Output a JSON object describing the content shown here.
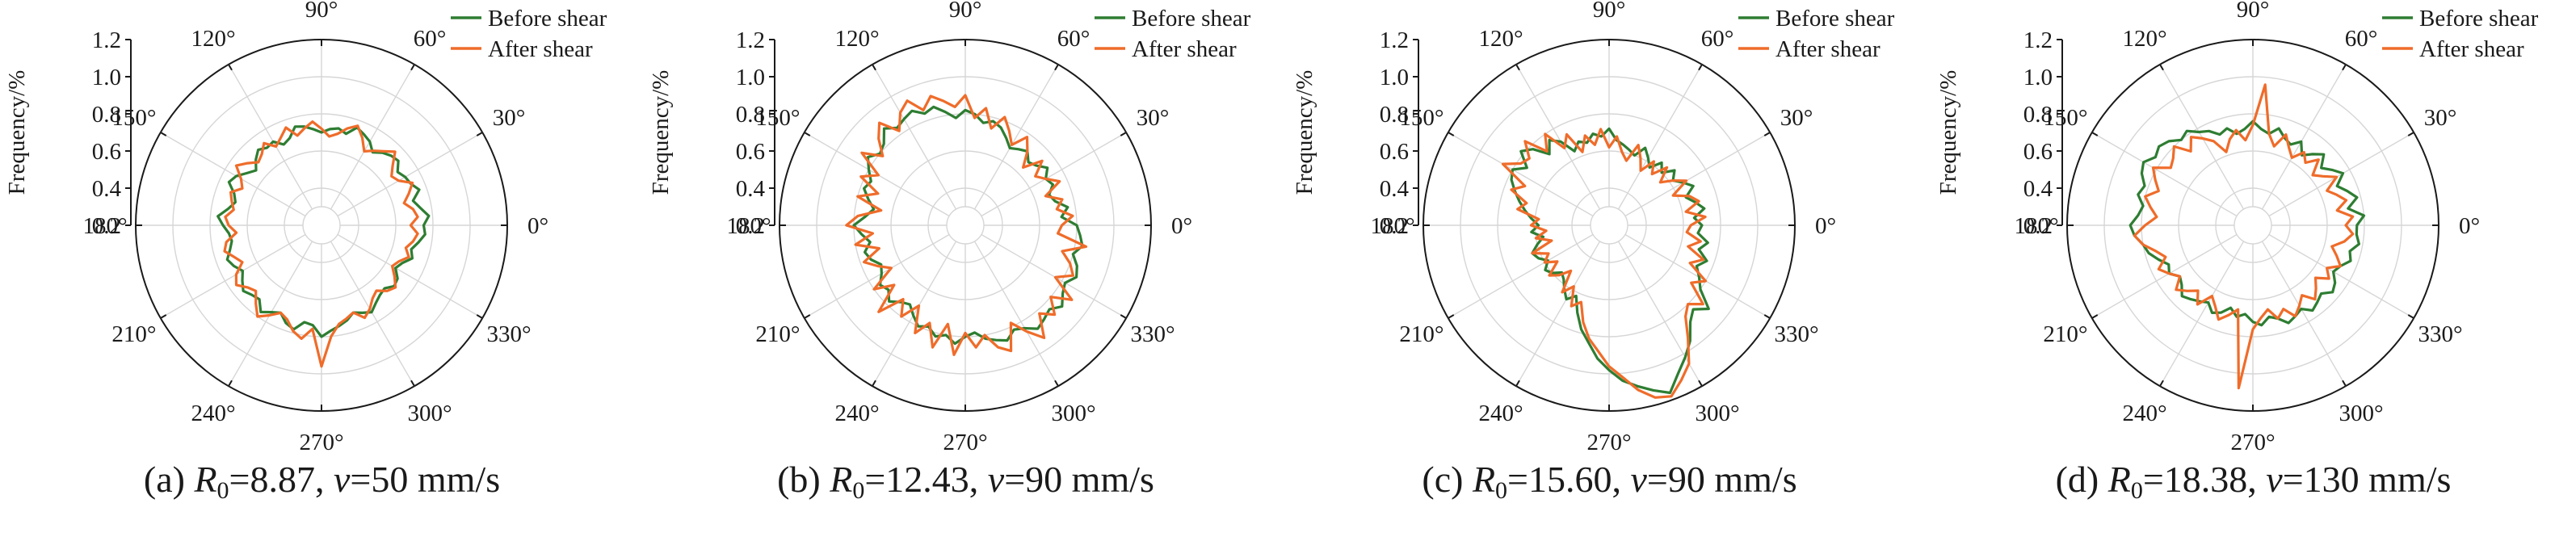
{
  "colors": {
    "before": "#2e7d32",
    "after": "#ef6c2a",
    "grid": "#d6d6d6",
    "axis": "#1a1a1a"
  },
  "panels": [
    {
      "label_prefix": "(a) ",
      "r_symbol": "R",
      "r_sub": "0",
      "r_value": "=8.87, ",
      "v_symbol": "v",
      "v_value": "=50 mm/s",
      "chart_data": {
        "type": "line",
        "projection": "polar",
        "rlabel": "Frequency/%",
        "rlim": [
          0,
          1.2
        ],
        "rticks": [
          "0.2",
          "0.4",
          "0.6",
          "0.8",
          "1.0",
          "1.2"
        ],
        "theta_ticks": [
          "0°",
          "30°",
          "60°",
          "90°",
          "120°",
          "150°",
          "180°",
          "210°",
          "240°",
          "270°",
          "300°",
          "330°"
        ],
        "legend": "top-right",
        "series": [
          {
            "name": "Before shear",
            "angle_step_deg": 5,
            "values": [
              0.75,
              0.78,
              0.74,
              0.71,
              0.76,
              0.73,
              0.72,
              0.7,
              0.74,
              0.73,
              0.71,
              0.68,
              0.72,
              0.74,
              0.76,
              0.71,
              0.73,
              0.72,
              0.7,
              0.72,
              0.74,
              0.75,
              0.7,
              0.68,
              0.72,
              0.71,
              0.73,
              0.7,
              0.66,
              0.69,
              0.73,
              0.75,
              0.7,
              0.68,
              0.71,
              0.76,
              0.73,
              0.7,
              0.69,
              0.71,
              0.74,
              0.72,
              0.69,
              0.72,
              0.75,
              0.73,
              0.72,
              0.77,
              0.74,
              0.72,
              0.76,
              0.78,
              0.73,
              0.74,
              0.8,
              0.77,
              0.75,
              0.73,
              0.7,
              0.72,
              0.74,
              0.71,
              0.69,
              0.68,
              0.71,
              0.7,
              0.66,
              0.68,
              0.72,
              0.7,
              0.73,
              0.76
            ]
          },
          {
            "name": "After shear",
            "angle_step_deg": 5,
            "values": [
              0.68,
              0.72,
              0.7,
              0.66,
              0.7,
              0.74,
              0.68,
              0.66,
              0.7,
              0.76,
              0.72,
              0.69,
              0.66,
              0.72,
              0.77,
              0.74,
              0.7,
              0.68,
              0.72,
              0.76,
              0.73,
              0.7,
              0.76,
              0.72,
              0.69,
              0.74,
              0.7,
              0.68,
              0.72,
              0.76,
              0.7,
              0.67,
              0.72,
              0.7,
              0.68,
              0.72,
              0.7,
              0.66,
              0.72,
              0.74,
              0.7,
              0.67,
              0.73,
              0.76,
              0.72,
              0.7,
              0.75,
              0.8,
              0.76,
              0.72,
              0.74,
              0.79,
              0.82,
              0.76,
              0.96,
              0.8,
              0.74,
              0.72,
              0.7,
              0.75,
              0.72,
              0.68,
              0.66,
              0.7,
              0.72,
              0.68,
              0.64,
              0.66,
              0.7,
              0.67,
              0.7,
              0.72
            ]
          }
        ]
      }
    },
    {
      "label_prefix": "(b) ",
      "r_symbol": "R",
      "r_sub": "0",
      "r_value": "=12.43, ",
      "v_symbol": "v",
      "v_value": "=90 mm/s",
      "chart_data": {
        "type": "line",
        "projection": "polar",
        "rlabel": "Frequency/%",
        "rlim": [
          0,
          1.2
        ],
        "rticks": [
          "0.2",
          "0.4",
          "0.6",
          "0.8",
          "1.0",
          "1.2"
        ],
        "theta_ticks": [
          "0°",
          "30°",
          "60°",
          "90°",
          "120°",
          "150°",
          "180°",
          "210°",
          "240°",
          "270°",
          "300°",
          "330°"
        ],
        "legend": "top-right",
        "series": [
          {
            "name": "Before shear",
            "angle_step_deg": 5,
            "values": [
              0.8,
              0.72,
              0.76,
              0.7,
              0.68,
              0.72,
              0.7,
              0.74,
              0.7,
              0.68,
              0.72,
              0.7,
              0.68,
              0.72,
              0.76,
              0.78,
              0.76,
              0.8,
              0.82,
              0.78,
              0.82,
              0.86,
              0.84,
              0.88,
              0.86,
              0.84,
              0.88,
              0.82,
              0.8,
              0.84,
              0.8,
              0.76,
              0.78,
              0.74,
              0.7,
              0.74,
              0.8,
              0.76,
              0.72,
              0.76,
              0.74,
              0.7,
              0.72,
              0.76,
              0.74,
              0.78,
              0.74,
              0.72,
              0.76,
              0.8,
              0.78,
              0.82,
              0.8,
              0.84,
              0.8,
              0.78,
              0.82,
              0.84,
              0.86,
              0.82,
              0.84,
              0.88,
              0.86,
              0.84,
              0.88,
              0.84,
              0.82,
              0.86,
              0.84,
              0.8,
              0.84,
              0.82
            ]
          },
          {
            "name": "After shear",
            "angle_step_deg": 5,
            "values": [
              0.72,
              0.78,
              0.7,
              0.74,
              0.66,
              0.76,
              0.7,
              0.66,
              0.74,
              0.64,
              0.72,
              0.78,
              0.7,
              0.76,
              0.82,
              0.74,
              0.84,
              0.78,
              0.9,
              0.84,
              0.88,
              0.92,
              0.86,
              0.94,
              0.9,
              0.82,
              0.92,
              0.86,
              0.78,
              0.88,
              0.74,
              0.82,
              0.7,
              0.8,
              0.66,
              0.78,
              0.84,
              0.7,
              0.8,
              0.68,
              0.78,
              0.72,
              0.66,
              0.8,
              0.7,
              0.86,
              0.72,
              0.8,
              0.7,
              0.84,
              0.76,
              0.88,
              0.74,
              0.9,
              0.78,
              0.86,
              0.8,
              0.88,
              0.92,
              0.78,
              0.86,
              0.94,
              0.82,
              0.88,
              0.8,
              0.9,
              0.76,
              0.84,
              0.8,
              0.74,
              0.86,
              0.7
            ]
          }
        ]
      }
    },
    {
      "label_prefix": "(c) ",
      "r_symbol": "R",
      "r_sub": "0",
      "r_value": "=15.60, ",
      "v_symbol": "v",
      "v_value": "=90 mm/s",
      "chart_data": {
        "type": "line",
        "projection": "polar",
        "rlabel": "Frequency/%",
        "rlim": [
          0,
          1.2
        ],
        "rticks": [
          "0.2",
          "0.4",
          "0.6",
          "0.8",
          "1.0",
          "1.2"
        ],
        "theta_ticks": [
          "0°",
          "30°",
          "60°",
          "90°",
          "120°",
          "150°",
          "180°",
          "210°",
          "240°",
          "270°",
          "300°",
          "330°"
        ],
        "legend": "top-right",
        "series": [
          {
            "name": "Before shear",
            "angle_step_deg": 5,
            "values": [
              0.7,
              0.66,
              0.72,
              0.68,
              0.64,
              0.7,
              0.66,
              0.62,
              0.66,
              0.6,
              0.64,
              0.58,
              0.62,
              0.66,
              0.6,
              0.62,
              0.64,
              0.66,
              0.72,
              0.68,
              0.7,
              0.66,
              0.68,
              0.64,
              0.72,
              0.76,
              0.7,
              0.78,
              0.82,
              0.74,
              0.8,
              0.78,
              0.74,
              0.7,
              0.66,
              0.62,
              0.58,
              0.62,
              0.56,
              0.6,
              0.64,
              0.62,
              0.58,
              0.62,
              0.6,
              0.56,
              0.58,
              0.62,
              0.66,
              0.62,
              0.7,
              0.78,
              0.84,
              0.92,
              0.98,
              1.04,
              1.08,
              1.12,
              1.16,
              1.08,
              1.02,
              0.96,
              0.88,
              0.84,
              0.9,
              0.8,
              0.76,
              0.72,
              0.76,
              0.7,
              0.74,
              0.68
            ]
          },
          {
            "name": "After shear",
            "angle_step_deg": 5,
            "values": [
              0.64,
              0.72,
              0.62,
              0.7,
              0.66,
              0.58,
              0.68,
              0.62,
              0.56,
              0.64,
              0.56,
              0.62,
              0.54,
              0.6,
              0.66,
              0.56,
              0.6,
              0.68,
              0.62,
              0.72,
              0.64,
              0.7,
              0.62,
              0.74,
              0.68,
              0.8,
              0.72,
              0.84,
              0.76,
              0.78,
              0.86,
              0.7,
              0.76,
              0.66,
              0.7,
              0.58,
              0.62,
              0.54,
              0.6,
              0.52,
              0.64,
              0.56,
              0.6,
              0.54,
              0.62,
              0.58,
              0.52,
              0.64,
              0.58,
              0.68,
              0.64,
              0.74,
              0.82,
              0.88,
              0.96,
              1.02,
              1.1,
              1.16,
              1.18,
              1.12,
              1.06,
              0.94,
              0.84,
              0.8,
              0.86,
              0.74,
              0.8,
              0.68,
              0.74,
              0.64,
              0.7,
              0.62
            ]
          }
        ]
      }
    },
    {
      "label_prefix": "(d) ",
      "r_symbol": "R",
      "r_sub": "0",
      "r_value": "=18.38, ",
      "v_symbol": "v",
      "v_value": "=130 mm/s",
      "chart_data": {
        "type": "line",
        "projection": "polar",
        "rlabel": "Frequency/%",
        "rlim": [
          0,
          1.2
        ],
        "rticks": [
          "0.2",
          "0.4",
          "0.6",
          "0.8",
          "1.0",
          "1.2"
        ],
        "theta_ticks": [
          "0°",
          "30°",
          "60°",
          "90°",
          "120°",
          "150°",
          "180°",
          "210°",
          "240°",
          "270°",
          "300°",
          "330°"
        ],
        "legend": "top-right",
        "series": [
          {
            "name": "Before shear",
            "angle_step_deg": 5,
            "values": [
              0.76,
              0.8,
              0.72,
              0.78,
              0.74,
              0.7,
              0.76,
              0.72,
              0.68,
              0.74,
              0.7,
              0.66,
              0.72,
              0.68,
              0.7,
              0.74,
              0.7,
              0.72,
              0.76,
              0.72,
              0.7,
              0.74,
              0.72,
              0.76,
              0.78,
              0.82,
              0.8,
              0.84,
              0.86,
              0.84,
              0.88,
              0.86,
              0.82,
              0.84,
              0.8,
              0.82,
              0.86,
              0.84,
              0.8,
              0.78,
              0.74,
              0.7,
              0.72,
              0.68,
              0.7,
              0.74,
              0.72,
              0.7,
              0.68,
              0.72,
              0.7,
              0.66,
              0.7,
              0.68,
              0.72,
              0.74,
              0.7,
              0.72,
              0.76,
              0.74,
              0.72,
              0.76,
              0.74,
              0.72,
              0.76,
              0.74,
              0.7,
              0.72,
              0.76,
              0.74,
              0.78,
              0.76
            ]
          },
          {
            "name": "After shear",
            "angle_step_deg": 5,
            "values": [
              0.7,
              0.74,
              0.66,
              0.72,
              0.68,
              0.64,
              0.72,
              0.66,
              0.62,
              0.7,
              0.64,
              0.68,
              0.62,
              0.66,
              0.72,
              0.64,
              0.7,
              0.96,
              0.74,
              0.66,
              0.72,
              0.68,
              0.62,
              0.7,
              0.74,
              0.78,
              0.72,
              0.8,
              0.76,
              0.74,
              0.82,
              0.78,
              0.74,
              0.8,
              0.76,
              0.72,
              0.78,
              0.84,
              0.8,
              0.74,
              0.7,
              0.76,
              0.72,
              0.68,
              0.74,
              0.7,
              0.66,
              0.72,
              0.64,
              0.68,
              0.74,
              0.7,
              0.66,
              1.08,
              0.76,
              0.7,
              0.66,
              0.72,
              0.68,
              0.74,
              0.7,
              0.66,
              0.72,
              0.68,
              0.64,
              0.7,
              0.66,
              0.72,
              0.68,
              0.64,
              0.7,
              0.74
            ]
          }
        ]
      }
    }
  ]
}
